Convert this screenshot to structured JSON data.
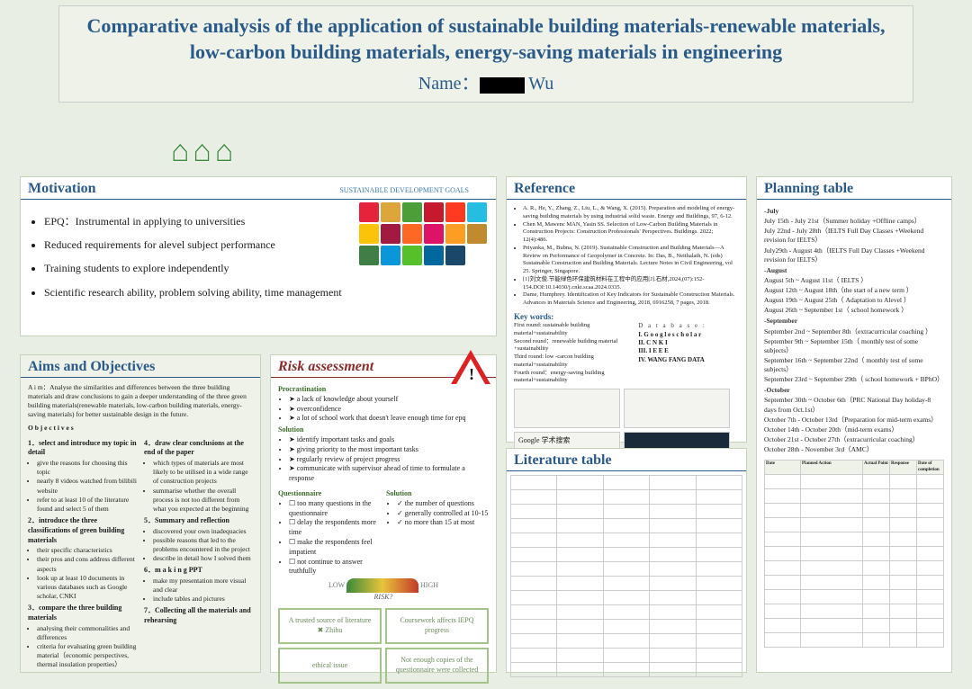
{
  "title": "Comparative analysis of the application of sustainable building materials-renewable materials, low-carbon building materials, energy-saving materials in engineering",
  "nameLabel": "Name：",
  "nameSuffix": "Wu",
  "motivation": {
    "head": "Motivation",
    "sdgLabel": "SUSTAINABLE DEVELOPMENT GOALS",
    "items": [
      "EPQ：Instrumental in applying to universities",
      "Reduced requirements for alevel subject performance",
      "Training students to explore independently",
      "Scientific research ability, problem solving ability, time management"
    ],
    "sdgColors": [
      "#e5243b",
      "#dda63a",
      "#4c9f38",
      "#c5192d",
      "#ff3a21",
      "#26bde2",
      "#fcc30b",
      "#a21942",
      "#fd6925",
      "#dd1367",
      "#fd9d24",
      "#bf8b2e",
      "#3f7e44",
      "#0a97d9",
      "#56c02b",
      "#00689d",
      "#19486a",
      "#ffffff"
    ]
  },
  "aims": {
    "head": "Aims and Objectives",
    "aim": "A i m：Analyse the similarities and differences between the three building materials and draw conclusions to gain a deeper understanding of the three green building materials(renewable materials, low-carbon building materials, energy-saving materials) for better sustainable design in the future.",
    "objHead": "O b j e c t i v e s",
    "left": [
      {
        "h": "1．select and introduce my topic in detail",
        "bullets": [
          "give the reasons for choosing this topic",
          "nearly 8 videos watched from bilibili website",
          "refer to at least 10 of the literature found and select 5 of them"
        ]
      },
      {
        "h": "2．introduce the three classifications of green building materials",
        "bullets": [
          "their specific characteristics",
          "their pros and cons address different aspects",
          "look up at least 10 documents in various databases such as Google scholar, CNKI"
        ]
      },
      {
        "h": "3．compare the three building materials",
        "bullets": [
          "analysing their commonalities and differences",
          "criteria for evaluating green building material（economic perspectives, thermal insulation properties）"
        ]
      }
    ],
    "right": [
      {
        "h": "4．draw clear conclusions at the end of the paper",
        "bullets": [
          "which types of materials are most likely to be utilised in a wide range of construction projects",
          "summarise whether the overall process is not too different from what you expected at the beginning"
        ]
      },
      {
        "h": "5．Summary and reflection",
        "bullets": [
          "discovered your own inadequacies",
          "possible reasons that led to the problems encountered in the project",
          "describe in detail how I solved them"
        ]
      },
      {
        "h": "6．m a k i n g PPT",
        "bullets": [
          "make my presentation more visual and clear",
          "include tables and pictures"
        ]
      },
      {
        "h": "7．Collecting all the materials and rehearsing",
        "bullets": []
      }
    ]
  },
  "risk": {
    "head": "Risk assessment",
    "proc": {
      "h": "Procrastination",
      "items": [
        "a lack of knowledge about yourself",
        "overconfidence",
        "a lot of school work that doesn't leave enough time for epq"
      ]
    },
    "sol1": {
      "h": "Solution",
      "items": [
        "identify important tasks and goals",
        "giving priority to the most important tasks",
        "regularly review of project progress",
        "communicate with supervisor ahead of time to formulate a response"
      ]
    },
    "ques": {
      "h": "Questionnaire",
      "items": [
        "too many questions in the questionnaire",
        "delay the respondents more time",
        "make the respondents feel impatient",
        "not continue to answer truthfully"
      ]
    },
    "sol2": {
      "h": "Solution",
      "items": [
        "the number of questions",
        "generally controlled at 10-15",
        "no more than 15 at most"
      ]
    },
    "riskLabel": "RISK?",
    "low": "LOW",
    "high": "HIGH",
    "boxes": [
      "A trusted source of literature  ✖ Zhihu",
      "Coursework affects IEPQ progress",
      "ethical issue",
      "Not enough copies of the questionnaire were collected"
    ]
  },
  "reference": {
    "head": "Reference",
    "items": [
      "A. R., He, Y., Zhang, Z., Liu, L., & Wang, X. (2015). Preparation and modeling of energy-saving building materials by using industrial solid waste. Energy and Buildings, 97, 6-12.",
      "Chen M, Mawenc MAN, Yasin SS. Selection of Low-Carbon Building Materials in Construction Projects: Construction Professionals' Perspectives. Buildings. 2022; 12(4):486.",
      "Priyanka, M., Bubna, N. (2019). Sustainable Construction and Building Materials—A Review on Performance of Geopolymer in Concrete. In: Das, B., Neithalath, N. (eds) Sustainable Construction and Building Materials. Lecture Notes in Civil Engineering, vol 25. Springer, Singapore.",
      "[1]刘文俊.节能绿色环保建筑材料在工程中的应用[J].石材,2024,(07):152-154.DOI:10.14030/j.cnki.scaa.2024.0335.",
      "Dame, Humphrey. Identification of Key Indicators for Sustainable Construction Materials. Advances in Materials Science and Engineering, 2018, 6916258, 7 pages, 2018."
    ],
    "kw": "Key words:",
    "rounds": [
      "First round: sustainable building material+sustainability",
      "Second round：renewable building material +sustainability",
      "Third round: low -carcon building material+sustainability",
      "Fourth round：energy-saving building material+sustainability"
    ],
    "dbHead": "D a t a    b a s e :",
    "dbs": [
      "I. G o o g l e  s c h o l a r",
      "II. C N K I",
      "III. I E E E",
      "IV. WANG FANG DATA"
    ],
    "search": "Google 学术搜索"
  },
  "lit": {
    "head": "Literature table",
    "rows": 14,
    "cols": 5
  },
  "planning": {
    "head": "Planning table",
    "lines": [
      {
        "m": true,
        "t": "-July"
      },
      {
        "t": "July 15th - July 21st（Summer holiday +Offline camps）"
      },
      {
        "t": "July 22nd - July 28th（IELTS Full Day Classes +Weekend revision for IELTS）"
      },
      {
        "t": "July29th - August 4th（IELTS Full Day Classes +Weekend revision for IELTS）"
      },
      {
        "m": true,
        "t": "-August"
      },
      {
        "t": "August 5th ~ August 11st（ IELTS  ）"
      },
      {
        "t": "August 12th ~ August 18th（the start of a new term ）"
      },
      {
        "t": "August 19th ~ August 25th（ Adaptation to Alevel  ）"
      },
      {
        "t": "August 26th ~ September 1st（ school homework  ）"
      },
      {
        "m": true,
        "t": "-September"
      },
      {
        "t": "September 2nd ~ September 8th（extracurricular coaching ）"
      },
      {
        "t": "September 9th ~ September 15th（ monthly test of some subjects）"
      },
      {
        "t": "September 16th ~ September 22nd（ monthly test of some subjects）"
      },
      {
        "t": "September 23rd ~ September 29th（ school homework + BPhO）"
      },
      {
        "m": true,
        "t": "-October"
      },
      {
        "t": "September 30th ~ October 6th（PRC National Day holiday-8 days from Oct.1st）"
      },
      {
        "t": "October 7th - October 13rd（Preparation for mid-term exams）"
      },
      {
        "t": "October 14th - October 20th（mid-term exams）"
      },
      {
        "t": "October 21st - October 27th（extracurricular coaching）"
      },
      {
        "t": "October 28th - November 3rd（AMC）"
      }
    ],
    "schedHead": [
      "Date",
      "Planned Action",
      "Actual Point",
      "Response",
      "Date of completion"
    ],
    "schedRows": 12
  }
}
